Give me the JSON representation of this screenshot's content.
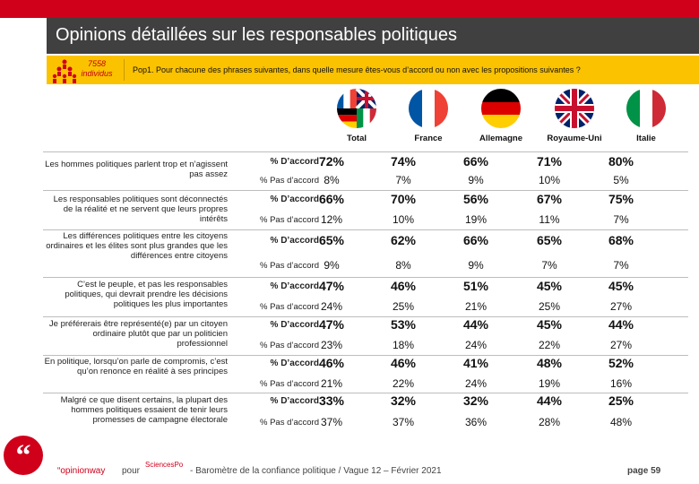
{
  "title": "Opinions détaillées sur les responsables politiques",
  "sample": {
    "count": "7558",
    "unit": "individus"
  },
  "question": "Pop1. Pour chacune des phrases suivantes, dans quelle mesure êtes-vous d’accord ou non avec les propositions suivantes ?",
  "columns": [
    "Total",
    "France",
    "Allemagne",
    "Royaume-Uni",
    "Italie"
  ],
  "row_labels": {
    "agree": "% D’accord",
    "disagree": "% Pas d’accord"
  },
  "statements": [
    {
      "text": "Les hommes politiques parlent trop et n’agissent pas assez",
      "agree": [
        "72%",
        "74%",
        "66%",
        "71%",
        "80%"
      ],
      "disagree": [
        "8%",
        "7%",
        "9%",
        "10%",
        "5%"
      ]
    },
    {
      "text": "Les responsables politiques sont déconnectés de la réalité et ne servent que leurs propres intérêts",
      "agree": [
        "66%",
        "70%",
        "56%",
        "67%",
        "75%"
      ],
      "disagree": [
        "12%",
        "10%",
        "19%",
        "11%",
        "7%"
      ]
    },
    {
      "text": "Les différences politiques entre les citoyens ordinaires et les élites sont plus grandes que les différences entre citoyens",
      "agree": [
        "65%",
        "62%",
        "66%",
        "65%",
        "68%"
      ],
      "disagree": [
        "9%",
        "8%",
        "9%",
        "7%",
        "7%"
      ]
    },
    {
      "text": "C’est le peuple, et pas les responsables politiques, qui devrait prendre les décisions politiques les plus importantes",
      "agree": [
        "47%",
        "46%",
        "51%",
        "45%",
        "45%"
      ],
      "disagree": [
        "24%",
        "25%",
        "21%",
        "25%",
        "27%"
      ]
    },
    {
      "text": "Je préférerais être représenté(e) par un citoyen ordinaire plutôt que par un politicien professionnel",
      "agree": [
        "47%",
        "53%",
        "44%",
        "45%",
        "44%"
      ],
      "disagree": [
        "23%",
        "18%",
        "24%",
        "22%",
        "27%"
      ]
    },
    {
      "text": "En politique, lorsqu’on parle de compromis, c’est qu’on renonce en réalité à ses principes",
      "agree": [
        "46%",
        "46%",
        "41%",
        "48%",
        "52%"
      ],
      "disagree": [
        "21%",
        "22%",
        "24%",
        "19%",
        "16%"
      ]
    },
    {
      "text": "Malgré ce que disent certains, la plupart des hommes politiques essaient de tenir leurs promesses de campagne électorale",
      "agree": [
        "33%",
        "32%",
        "32%",
        "44%",
        "25%"
      ],
      "disagree": [
        "37%",
        "37%",
        "36%",
        "28%",
        "48%"
      ]
    }
  ],
  "footer": {
    "brand": "“opinionway",
    "pour": "pour",
    "partner": "SciencesPo",
    "baro": "-  Baromètre de la confiance politique / Vague 12 – Février 2021",
    "page": "page 59"
  },
  "colors": {
    "red": "#d0001b",
    "yellow": "#fbc200",
    "dark": "#404040"
  }
}
